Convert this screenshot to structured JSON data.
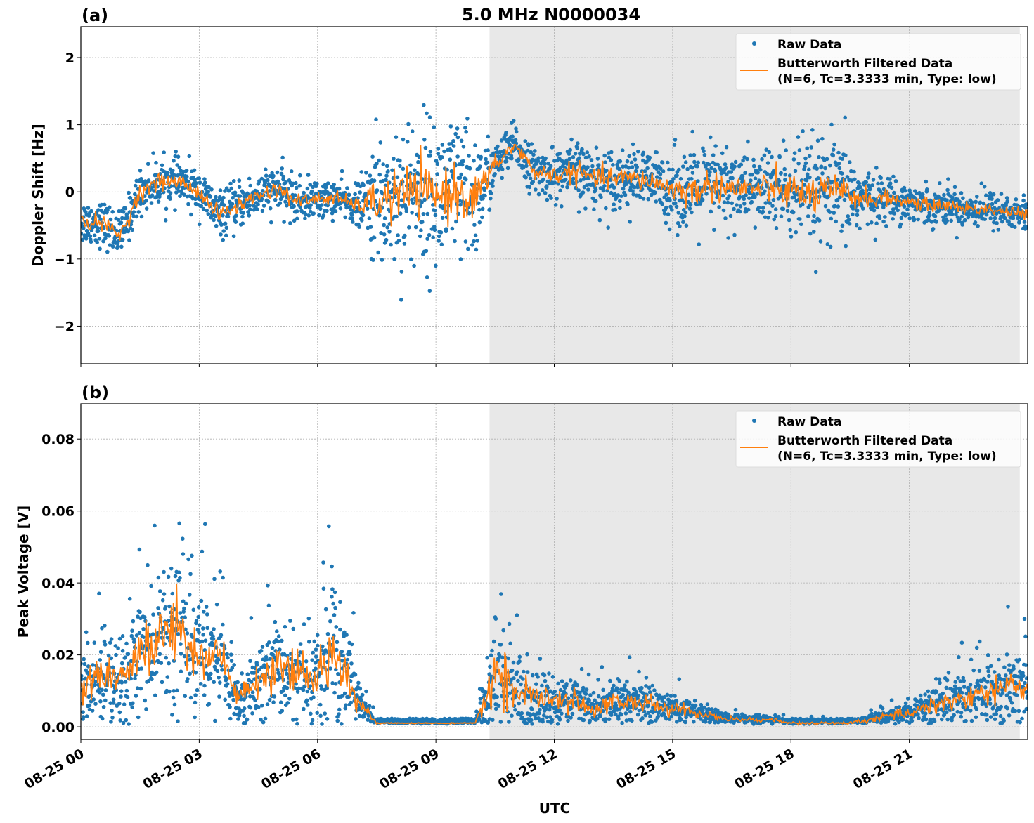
{
  "title": "5.0 MHz N0000034",
  "xlabel": "UTC",
  "x_tick_labels": [
    "08-25 00",
    "08-25 03",
    "08-25 06",
    "08-25 09",
    "08-25 12",
    "08-25 15",
    "08-25 18",
    "08-25 21"
  ],
  "x_tick_hours": [
    0,
    3,
    6,
    9,
    12,
    15,
    18,
    21
  ],
  "xlim_hours": [
    0,
    24
  ],
  "legend": {
    "raw": "Raw Data",
    "filtered_line1": "Butterworth Filtered Data",
    "filtered_line2": "(N=6, Tc=3.3333 min, Type: low)"
  },
  "colors": {
    "raw": "#1f77b4",
    "filtered": "#ff7f0e",
    "shade": "#e8e8e8"
  },
  "chart_data": [
    {
      "type": "scatter",
      "panel_label": "(a)",
      "ylabel": "Doppler Shift [Hz]",
      "ylim": [
        -2.56,
        2.46
      ],
      "y_ticks": [
        2,
        1,
        0,
        -1,
        -2
      ],
      "y_tick_labels": [
        "2",
        "1",
        "0",
        "−1",
        "−2"
      ],
      "grid": true,
      "legend_position": "top-right",
      "shaded_hours": [
        10.36,
        23.8
      ],
      "hours": [
        0,
        0.5,
        1,
        1.5,
        2,
        2.5,
        3,
        3.5,
        4,
        4.5,
        5,
        5.5,
        6,
        6.5,
        7,
        7.5,
        8,
        8.5,
        9,
        9.5,
        10,
        10.5,
        11,
        11.5,
        12,
        12.5,
        13,
        13.5,
        14,
        14.5,
        15,
        15.5,
        16,
        16.5,
        17,
        17.5,
        18,
        18.5,
        19,
        19.5,
        20,
        20.5,
        21,
        21.5,
        22,
        22.5,
        23,
        23.5,
        24
      ],
      "filtered": [
        -0.45,
        -0.45,
        -0.65,
        0.0,
        0.15,
        0.15,
        0.0,
        -0.35,
        -0.2,
        -0.05,
        0.05,
        -0.15,
        -0.1,
        -0.1,
        -0.2,
        -0.15,
        -0.05,
        0.0,
        -0.05,
        0.0,
        -0.1,
        0.4,
        0.7,
        0.3,
        0.25,
        0.3,
        0.2,
        0.2,
        0.2,
        0.15,
        0.05,
        0.0,
        0.1,
        0.05,
        0.05,
        0.05,
        0.0,
        -0.05,
        0.0,
        -0.05,
        -0.1,
        -0.1,
        -0.15,
        -0.2,
        -0.2,
        -0.25,
        -0.25,
        -0.3,
        -0.35
      ],
      "raw_spread": [
        0.3,
        0.3,
        0.3,
        0.3,
        0.3,
        0.3,
        0.3,
        0.3,
        0.3,
        0.3,
        0.3,
        0.3,
        0.25,
        0.25,
        0.25,
        0.9,
        1.0,
        1.0,
        1.0,
        1.0,
        0.9,
        0.3,
        0.3,
        0.3,
        0.35,
        0.4,
        0.4,
        0.4,
        0.4,
        0.4,
        0.5,
        0.6,
        0.6,
        0.55,
        0.5,
        0.55,
        0.7,
        0.7,
        0.7,
        0.65,
        0.35,
        0.3,
        0.25,
        0.25,
        0.25,
        0.25,
        0.25,
        0.25,
        0.25
      ]
    },
    {
      "type": "scatter",
      "panel_label": "(b)",
      "ylabel": "Peak Voltage [V]",
      "ylim": [
        -0.0035,
        0.0898
      ],
      "y_ticks": [
        0.08,
        0.06,
        0.04,
        0.02,
        0.0
      ],
      "y_tick_labels": [
        "0.08",
        "0.06",
        "0.04",
        "0.02",
        "0.00"
      ],
      "grid": true,
      "legend_position": "top-right",
      "shaded_hours": [
        10.36,
        23.8
      ],
      "hours": [
        0,
        0.5,
        1,
        1.5,
        2,
        2.5,
        3,
        3.5,
        4,
        4.5,
        5,
        5.5,
        6,
        6.5,
        7,
        7.5,
        8,
        8.5,
        9,
        9.5,
        10,
        10.5,
        11,
        11.5,
        12,
        12.5,
        13,
        13.5,
        14,
        14.5,
        15,
        15.5,
        16,
        16.5,
        17,
        17.5,
        18,
        18.5,
        19,
        19.5,
        20,
        20.5,
        21,
        21.5,
        22,
        22.5,
        23,
        23.5,
        24
      ],
      "filtered": [
        0.01,
        0.015,
        0.012,
        0.02,
        0.025,
        0.028,
        0.02,
        0.02,
        0.008,
        0.012,
        0.016,
        0.014,
        0.014,
        0.022,
        0.008,
        0.001,
        0.001,
        0.001,
        0.001,
        0.001,
        0.001,
        0.015,
        0.01,
        0.008,
        0.007,
        0.007,
        0.005,
        0.007,
        0.007,
        0.006,
        0.005,
        0.004,
        0.003,
        0.002,
        0.002,
        0.002,
        0.001,
        0.001,
        0.001,
        0.001,
        0.002,
        0.003,
        0.004,
        0.006,
        0.007,
        0.008,
        0.01,
        0.011,
        0.01
      ],
      "raw_spread": [
        0.008,
        0.012,
        0.01,
        0.016,
        0.02,
        0.022,
        0.016,
        0.014,
        0.006,
        0.009,
        0.012,
        0.011,
        0.012,
        0.02,
        0.006,
        0.0003,
        0.0003,
        0.0003,
        0.0003,
        0.0003,
        0.0003,
        0.016,
        0.01,
        0.008,
        0.006,
        0.006,
        0.004,
        0.006,
        0.006,
        0.005,
        0.004,
        0.003,
        0.002,
        0.0015,
        0.0012,
        0.0012,
        0.0008,
        0.0008,
        0.0008,
        0.0008,
        0.0015,
        0.002,
        0.003,
        0.005,
        0.006,
        0.007,
        0.008,
        0.009,
        0.008
      ]
    }
  ]
}
